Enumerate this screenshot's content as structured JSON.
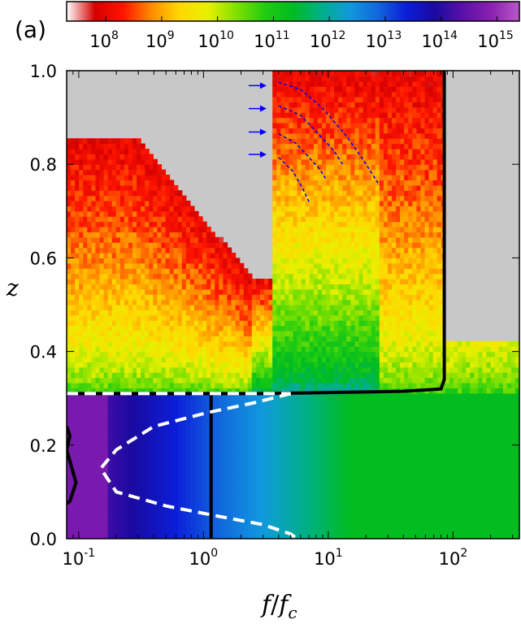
{
  "panel_label": "(a)",
  "colorbar": {
    "scale": "log",
    "tick_labels": [
      {
        "base": "10",
        "exp": "8"
      },
      {
        "base": "10",
        "exp": "9"
      },
      {
        "base": "10",
        "exp": "10"
      },
      {
        "base": "10",
        "exp": "11"
      },
      {
        "base": "10",
        "exp": "12"
      },
      {
        "base": "10",
        "exp": "13"
      },
      {
        "base": "10",
        "exp": "14"
      },
      {
        "base": "10",
        "exp": "15"
      }
    ],
    "range": [
      7.3,
      15.4
    ],
    "colors": [
      "#ffffff",
      "#d40000",
      "#ff1500",
      "#ff8c00",
      "#ffd800",
      "#e8f000",
      "#7fe000",
      "#22cc11",
      "#00bb22",
      "#00b088",
      "#1199dd",
      "#1166dd",
      "#0b1ed8",
      "#1a0aa0",
      "#5a10a8",
      "#8a20b0",
      "#b858c8"
    ]
  },
  "chart_data": {
    "type": "heatmap",
    "x_scale": "log",
    "xlim": [
      0.08,
      340
    ],
    "ylim": [
      0.0,
      1.0
    ],
    "xlabel": "f/f_c",
    "xlabel_main": "f",
    "xlabel_denom": "f",
    "xlabel_sub": "c",
    "ylabel": "z",
    "x_tick_labels": [
      {
        "base": "10",
        "exp": "-1",
        "value": 0.1
      },
      {
        "base": "10",
        "exp": "0",
        "value": 1
      },
      {
        "base": "10",
        "exp": "1",
        "value": 10
      },
      {
        "base": "10",
        "exp": "2",
        "value": 100
      }
    ],
    "y_ticks": [
      0.0,
      0.2,
      0.4,
      0.6,
      0.8,
      1.0
    ],
    "y_tick_labels": [
      "0.0",
      "0.2",
      "0.4",
      "0.6",
      "0.8",
      "1.0"
    ],
    "background_color": "#c8c8c8",
    "regions": {
      "boundary_z": 0.31,
      "lower_level_low_f": 14.5,
      "lower_level_high_f": 11.3,
      "upper_level_near_boundary": 11.0,
      "upper_level_top": 8.0
    },
    "contours": [
      {
        "style": "solid-black",
        "points": [
          [
            0.08,
            0.31
          ],
          [
            3,
            0.31
          ],
          [
            40,
            0.315
          ],
          [
            80,
            0.32
          ],
          [
            85,
            0.34
          ],
          [
            85,
            1.0
          ]
        ]
      },
      {
        "style": "solid-black",
        "points": [
          [
            1.15,
            0.0
          ],
          [
            1.15,
            0.31
          ]
        ]
      },
      {
        "style": "solid-black",
        "points": [
          [
            0.08,
            0.24
          ],
          [
            0.085,
            0.22
          ],
          [
            0.08,
            0.19
          ],
          [
            0.095,
            0.12
          ],
          [
            0.085,
            0.08
          ],
          [
            0.08,
            0.075
          ]
        ]
      },
      {
        "style": "dashed-white",
        "points": [
          [
            0.08,
            0.31
          ],
          [
            5,
            0.31
          ]
        ]
      },
      {
        "style": "dashed-white",
        "points": [
          [
            5,
            0.31
          ],
          [
            2.5,
            0.29
          ],
          [
            1.1,
            0.27
          ],
          [
            0.4,
            0.24
          ],
          [
            0.2,
            0.19
          ],
          [
            0.15,
            0.15
          ],
          [
            0.2,
            0.1
          ],
          [
            0.5,
            0.07
          ],
          [
            1.2,
            0.05
          ],
          [
            3,
            0.03
          ],
          [
            5,
            0.01
          ],
          [
            5.6,
            0.0
          ]
        ]
      },
      {
        "style": "dashed-blue",
        "points": [
          [
            4,
            0.975
          ],
          [
            6,
            0.96
          ],
          [
            9,
            0.92
          ],
          [
            14,
            0.86
          ],
          [
            19,
            0.81
          ],
          [
            25,
            0.76
          ]
        ]
      },
      {
        "style": "dashed-blue",
        "points": [
          [
            4,
            0.925
          ],
          [
            6,
            0.905
          ],
          [
            8,
            0.87
          ],
          [
            11,
            0.83
          ],
          [
            13,
            0.8
          ]
        ]
      },
      {
        "style": "dashed-blue",
        "points": [
          [
            4,
            0.865
          ],
          [
            5.5,
            0.845
          ],
          [
            7,
            0.815
          ],
          [
            8.5,
            0.79
          ],
          [
            9.5,
            0.77
          ]
        ]
      },
      {
        "style": "dashed-blue",
        "points": [
          [
            4,
            0.815
          ],
          [
            5.2,
            0.785
          ],
          [
            6.2,
            0.75
          ],
          [
            7,
            0.72
          ]
        ]
      }
    ],
    "arrows": [
      {
        "x": 3.2,
        "y": 0.968
      },
      {
        "x": 3.2,
        "y": 0.919
      },
      {
        "x": 3.2,
        "y": 0.869
      },
      {
        "x": 3.2,
        "y": 0.821
      }
    ]
  }
}
